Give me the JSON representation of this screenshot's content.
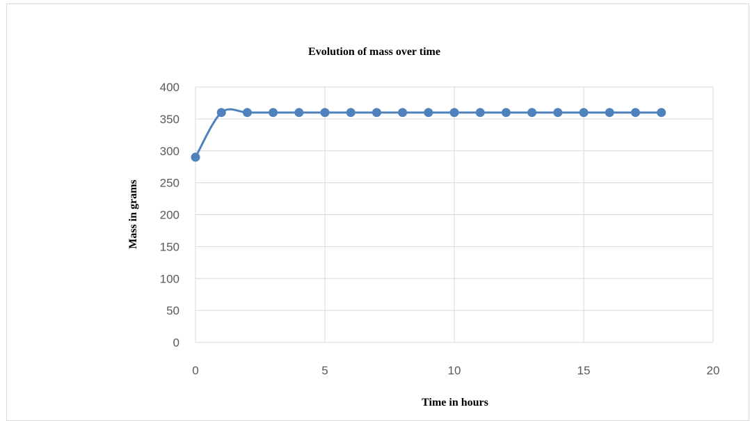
{
  "chart_data": {
    "type": "scatter",
    "title": "Evolution of mass over time",
    "xlabel": "Time in hours",
    "ylabel": "Mass in grams",
    "xlim": [
      0,
      20
    ],
    "ylim": [
      0,
      400
    ],
    "xticks": [
      0,
      5,
      10,
      15,
      20
    ],
    "yticks": [
      0,
      50,
      100,
      150,
      200,
      250,
      300,
      350,
      400
    ],
    "grid": true,
    "legend": "none",
    "smoothed_line": true,
    "series": [
      {
        "color": "#4f81bd",
        "x": [
          0,
          1,
          2,
          3,
          4,
          5,
          6,
          7,
          8,
          9,
          10,
          11,
          12,
          13,
          14,
          15,
          16,
          17,
          18
        ],
        "y": [
          290,
          360,
          360,
          360,
          360,
          360,
          360,
          360,
          360,
          360,
          360,
          360,
          360,
          360,
          360,
          360,
          360,
          360,
          360
        ]
      }
    ],
    "colors": {
      "grid": "#d9d9d9",
      "tick_text": "#595959",
      "title_text": "#000000"
    }
  }
}
